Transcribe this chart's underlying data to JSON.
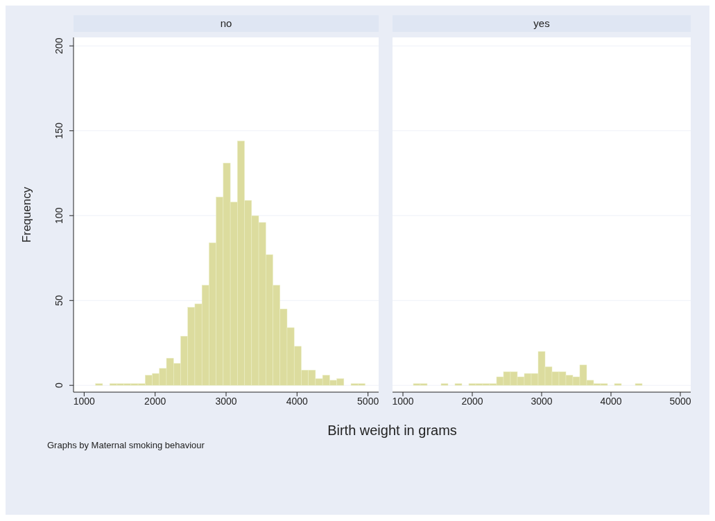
{
  "chart_data": [
    {
      "type": "histogram",
      "title": "no",
      "xlabel": "Birth weight in grams",
      "ylabel": "Frequency",
      "annotations": [
        "Graphs by Maternal smoking behaviour"
      ],
      "color": "#dcdc9e",
      "bins": [
        1150,
        1250,
        1350,
        1450,
        1550,
        1650,
        1750,
        1850,
        1950,
        2050,
        2150,
        2250,
        2350,
        2450,
        2550,
        2650,
        2750,
        2850,
        2950,
        3050,
        3150,
        3250,
        3350,
        3450,
        3550,
        3650,
        3750,
        3850,
        3950,
        4050,
        4150,
        4250,
        4350,
        4450,
        4550,
        4650,
        4750,
        4850,
        4950
      ],
      "values": [
        1,
        0,
        1,
        1,
        1,
        1,
        1,
        6,
        7,
        10,
        16,
        13,
        29,
        46,
        48,
        59,
        84,
        111,
        131,
        108,
        144,
        109,
        100,
        96,
        77,
        59,
        45,
        34,
        23,
        9,
        9,
        4,
        6,
        3,
        4,
        0,
        1,
        1
      ],
      "xlim": [
        850,
        5150
      ],
      "xticks": [
        1000,
        2000,
        3000,
        4000,
        5000
      ],
      "ylim": [
        -4,
        205
      ],
      "yticks": [
        0,
        50,
        100,
        150,
        200
      ],
      "grid": "y"
    },
    {
      "type": "histogram",
      "title": "yes",
      "color": "#dcdc9e",
      "bins": [
        1150,
        1250,
        1350,
        1450,
        1550,
        1650,
        1750,
        1850,
        1950,
        2050,
        2150,
        2250,
        2350,
        2450,
        2550,
        2650,
        2750,
        2850,
        2950,
        3050,
        3150,
        3250,
        3350,
        3450,
        3550,
        3650,
        3750,
        3850,
        3950,
        4050,
        4150,
        4250,
        4350,
        4450,
        4550,
        4650,
        4750,
        4850,
        4950
      ],
      "values": [
        1,
        1,
        0,
        0,
        1,
        0,
        1,
        0,
        1,
        1,
        1,
        1,
        5,
        8,
        8,
        5,
        7,
        7,
        20,
        11,
        8,
        8,
        6,
        5,
        12,
        3,
        1,
        1,
        0,
        1,
        0,
        0,
        1,
        0,
        0,
        0,
        0,
        0
      ],
      "xlim": [
        850,
        5150
      ],
      "xticks": [
        1000,
        2000,
        3000,
        4000,
        5000
      ],
      "ylim": [
        -4,
        205
      ],
      "yticks": [
        0,
        50,
        100,
        150,
        200
      ],
      "grid": "y",
      "tick_labels": "x"
    }
  ]
}
